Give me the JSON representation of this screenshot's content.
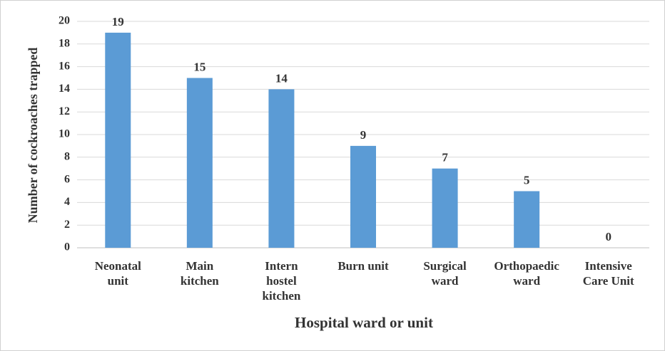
{
  "chart_data": {
    "type": "bar",
    "x_label": "Hospital ward or unit",
    "y_label": "Number of cockroaches trapped",
    "categories": [
      "Neonatal unit",
      "Main kitchen",
      "Intern hostel kitchen",
      "Burn unit",
      "Surgical ward",
      "Orthopaedic ward",
      "Intensive Care Unit"
    ],
    "values": [
      19,
      15,
      14,
      9,
      7,
      5,
      0
    ],
    "color": "#5b9bd5",
    "ylim": [
      0,
      20
    ],
    "yticks": [
      0,
      2,
      4,
      6,
      8,
      10,
      12,
      14,
      16,
      18,
      20
    ],
    "grid": true
  }
}
